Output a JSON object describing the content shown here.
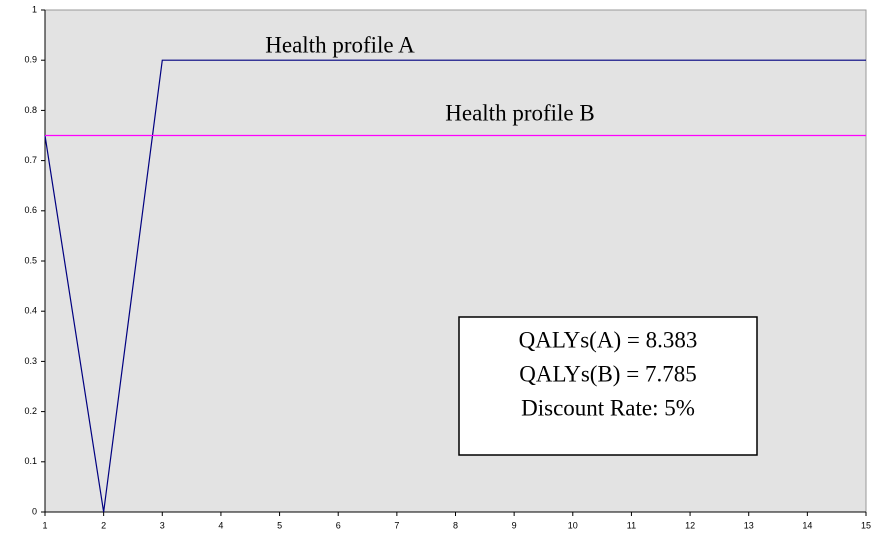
{
  "chart_data": {
    "type": "line",
    "x": [
      1,
      2,
      3,
      4,
      5,
      6,
      7,
      8,
      9,
      10,
      11,
      12,
      13,
      14,
      15
    ],
    "series": [
      {
        "color": "#000080",
        "values": [
          0.75,
          0,
          0.9,
          0.9,
          0.9,
          0.9,
          0.9,
          0.9,
          0.9,
          0.9,
          0.9,
          0.9,
          0.9,
          0.9,
          0.9
        ]
      },
      {
        "color": "#ff00ff",
        "values": [
          0.75,
          0.75,
          0.75,
          0.75,
          0.75,
          0.75,
          0.75,
          0.75,
          0.75,
          0.75,
          0.75,
          0.75,
          0.75,
          0.75,
          0.75
        ]
      }
    ],
    "xlim": [
      1,
      15
    ],
    "xticks": [
      1,
      2,
      3,
      4,
      5,
      6,
      7,
      8,
      9,
      10,
      11,
      12,
      13,
      14,
      15
    ],
    "ylim": [
      0,
      1
    ],
    "yticks": [
      0,
      0.1,
      0.2,
      0.3,
      0.4,
      0.5,
      0.6,
      0.7,
      0.8,
      0.9,
      1
    ],
    "grid": false,
    "background": "#e3e3e3",
    "annotations": [
      "Health profile  A",
      "Health profile B"
    ],
    "box_lines": [
      "QALYs(A) = 8.383",
      "QALYs(B) = 7.785",
      "Discount Rate: 5%"
    ]
  }
}
